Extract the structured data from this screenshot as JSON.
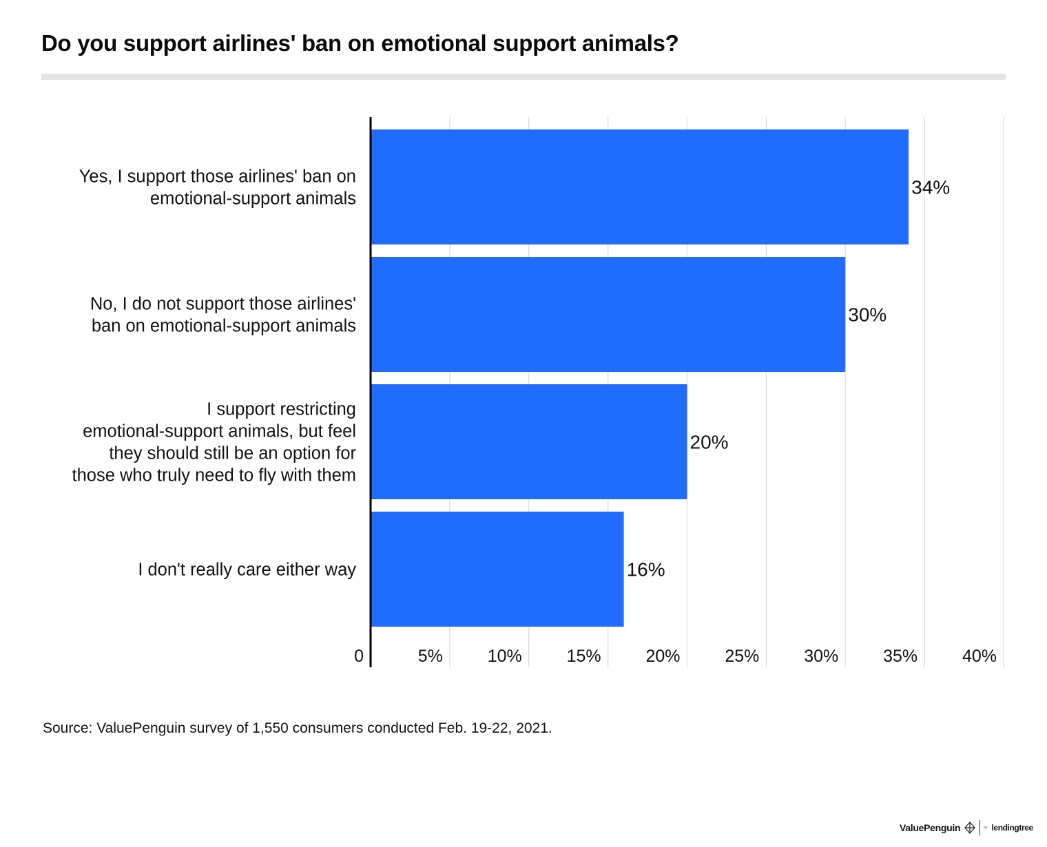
{
  "chart_data": {
    "type": "bar",
    "orientation": "horizontal",
    "title": "Do you support airlines' ban on emotional support animals?",
    "categories": [
      [
        "Yes, I support those airlines' ban on",
        "emotional-support animals"
      ],
      [
        "No, I do not support those airlines'",
        "ban on emotional-support animals"
      ],
      [
        "I support restricting",
        "emotional-support animals, but feel",
        "they should still be an option for",
        "those who truly need to fly with them"
      ],
      [
        "I don't really care either way"
      ]
    ],
    "values": [
      34,
      30,
      20,
      16
    ],
    "value_labels": [
      "34%",
      "30%",
      "20%",
      "16%"
    ],
    "xlim": [
      0,
      40
    ],
    "ticks": [
      0,
      5,
      10,
      15,
      20,
      25,
      30,
      35,
      40
    ],
    "tick_labels": [
      "0",
      "5%",
      "10%",
      "15%",
      "20%",
      "25%",
      "30%",
      "35%",
      "40%"
    ],
    "grid": true,
    "bar_color": "#1f6cff",
    "grid_color": "#dcdcdc",
    "axis_color": "#000000"
  },
  "source": "Source: ValuePenguin survey of 1,550 consumers conducted Feb. 19-22, 2021.",
  "brand": {
    "name": "ValuePenguin",
    "by": "by",
    "parent": "lendingtree"
  }
}
